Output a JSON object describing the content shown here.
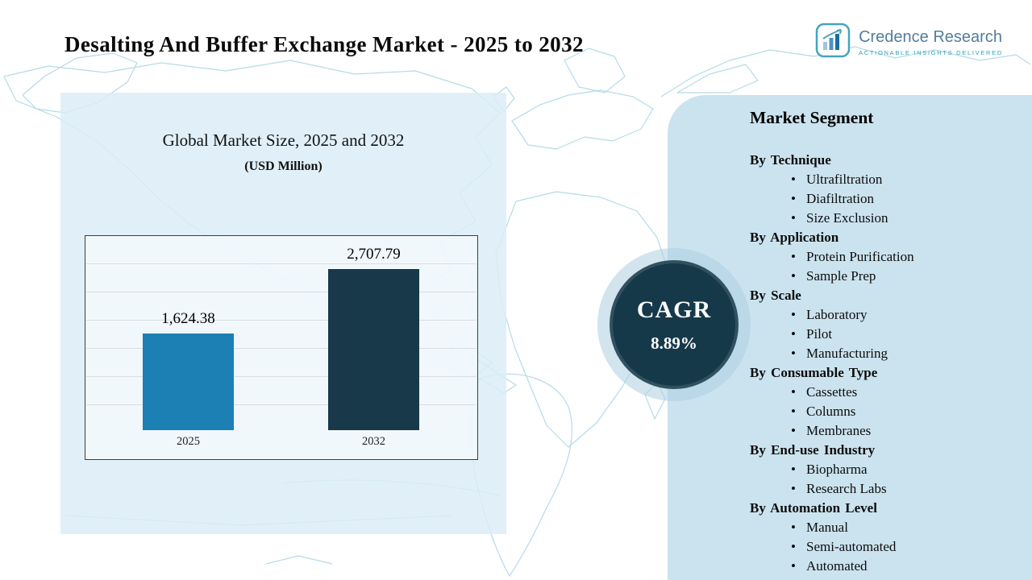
{
  "header": {
    "title": "Desalting And Buffer Exchange Market - 2025 to 2032",
    "logo": {
      "name": "Credence Research",
      "tagline": "Actionable Insights Delivered"
    }
  },
  "chart_panel": {
    "title": "Global Market Size, 2025 and 2032",
    "subtitle": "(USD Million)"
  },
  "chart_data": {
    "type": "bar",
    "title": "Global Market Size, 2025 and 2032",
    "ylabel": "USD Million",
    "categories": [
      "2025",
      "2032"
    ],
    "values": [
      1624.38,
      2707.79
    ],
    "value_labels": [
      "1,624.38",
      "2,707.79"
    ],
    "bar_colors": [
      "#1c80b4",
      "#17394a"
    ],
    "ylim": [
      0,
      2800
    ],
    "grid": true,
    "legend": "none"
  },
  "cagr": {
    "label": "CAGR",
    "value": "8.89%"
  },
  "segments": {
    "heading": "Market Segment",
    "groups": [
      {
        "label": "By Technique",
        "items": [
          "Ultrafiltration",
          "Diafiltration",
          "Size Exclusion"
        ]
      },
      {
        "label": "By Application",
        "items": [
          "Protein Purification",
          "Sample Prep"
        ]
      },
      {
        "label": "By Scale",
        "items": [
          "Laboratory",
          "Pilot",
          "Manufacturing"
        ]
      },
      {
        "label": "By Consumable Type",
        "items": [
          "Cassettes",
          "Columns",
          "Membranes"
        ]
      },
      {
        "label": "By End-use Industry",
        "items": [
          "Biopharma",
          "Research Labs"
        ]
      },
      {
        "label": "By Automation Level",
        "items": [
          "Manual",
          "Semi-automated",
          "Automated"
        ]
      }
    ]
  },
  "colors": {
    "accent_dark": "#17394a",
    "accent_blue": "#1c80b4",
    "chart_panel_bg": "#dbedf7",
    "segment_panel_bg": "#cbe3ef",
    "map_line": "#b5dbe7",
    "logo_teal": "#2ba3b8",
    "logo_gray_blue": "#547d9b"
  }
}
